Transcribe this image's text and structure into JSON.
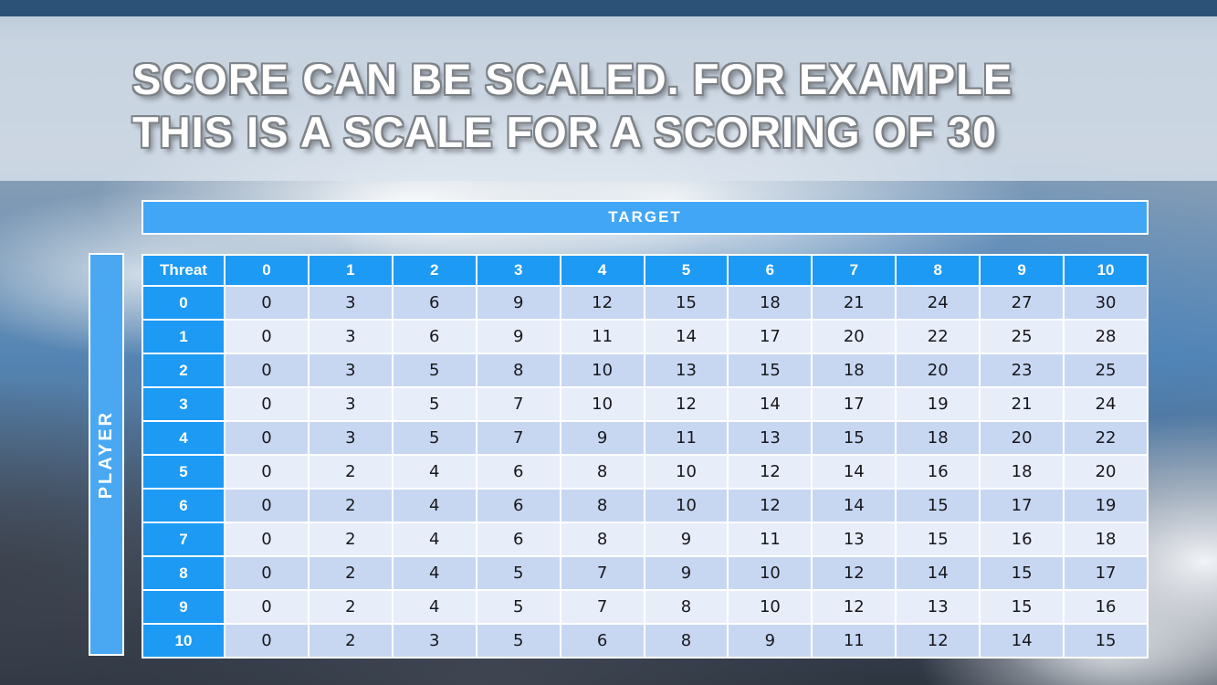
{
  "slide": {
    "title_line1": "SCORE CAN BE SCALED. FOR EXAMPLE",
    "title_line2": "THIS IS A SCALE FOR A SCORING OF 30"
  },
  "table": {
    "target_label": "TARGET",
    "player_label": "PLAYER",
    "corner_label": "Threat",
    "column_headers": [
      "0",
      "1",
      "2",
      "3",
      "4",
      "5",
      "6",
      "7",
      "8",
      "9",
      "10"
    ],
    "row_headers": [
      "0",
      "1",
      "2",
      "3",
      "4",
      "5",
      "6",
      "7",
      "8",
      "9",
      "10"
    ],
    "rows": [
      [
        0,
        3,
        6,
        9,
        12,
        15,
        18,
        21,
        24,
        27,
        30
      ],
      [
        0,
        3,
        6,
        9,
        11,
        14,
        17,
        20,
        22,
        25,
        28
      ],
      [
        0,
        3,
        5,
        8,
        10,
        13,
        15,
        18,
        20,
        23,
        25
      ],
      [
        0,
        3,
        5,
        7,
        10,
        12,
        14,
        17,
        19,
        21,
        24
      ],
      [
        0,
        3,
        5,
        7,
        9,
        11,
        13,
        15,
        18,
        20,
        22
      ],
      [
        0,
        2,
        4,
        6,
        8,
        10,
        12,
        14,
        16,
        18,
        20
      ],
      [
        0,
        2,
        4,
        6,
        8,
        10,
        12,
        14,
        15,
        17,
        19
      ],
      [
        0,
        2,
        4,
        6,
        8,
        9,
        11,
        13,
        15,
        16,
        18
      ],
      [
        0,
        2,
        4,
        5,
        7,
        9,
        10,
        12,
        14,
        15,
        17
      ],
      [
        0,
        2,
        4,
        5,
        7,
        8,
        10,
        12,
        13,
        15,
        16
      ],
      [
        0,
        2,
        3,
        5,
        6,
        8,
        9,
        11,
        12,
        14,
        15
      ]
    ]
  },
  "colors": {
    "header_blue": "#1d9af4",
    "banner_blue": "#42a6f7",
    "row_dark": "#c7d7f2",
    "row_light": "#e8edfa",
    "top_strip": "#2d5278"
  }
}
